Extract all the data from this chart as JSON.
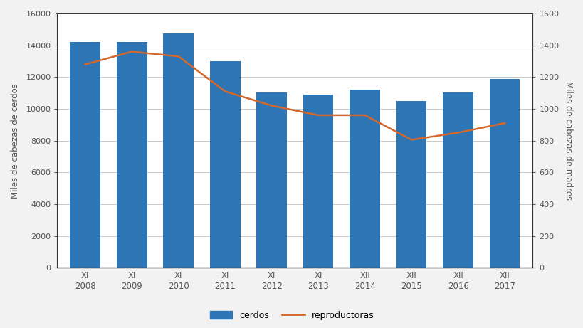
{
  "years": [
    "2008",
    "2009",
    "2010",
    "2011",
    "2012",
    "2013",
    "2014",
    "2015",
    "2016",
    "2017"
  ],
  "months": [
    "XI",
    "XI",
    "XI",
    "XI",
    "XI",
    "XI",
    "XII",
    "XII",
    "XII",
    "XII"
  ],
  "cerdos": [
    14200,
    14200,
    14750,
    13000,
    11050,
    10900,
    11200,
    10500,
    11050,
    11900
  ],
  "reproductoras": [
    1280,
    1360,
    1330,
    1110,
    1020,
    960,
    960,
    805,
    850,
    910
  ],
  "bar_color": "#2e75b6",
  "line_color": "#d4682a",
  "left_ylim": [
    0,
    16000
  ],
  "right_ylim": [
    0,
    1600
  ],
  "left_yticks": [
    0,
    2000,
    4000,
    6000,
    8000,
    10000,
    12000,
    14000,
    16000
  ],
  "right_yticks": [
    0,
    200,
    400,
    600,
    800,
    1000,
    1200,
    1400,
    1600
  ],
  "left_ylabel": "Miles de cabezas de cerdos",
  "right_ylabel": "Miles de cabezas de madres",
  "legend_cerdos": "cerdos",
  "legend_reproductoras": "reproductoras",
  "bg_color": "#ffffff",
  "outer_bg": "#f2f2f2",
  "grid_color": "#c8c8c8",
  "spine_color": "#333333",
  "tick_color": "#555555"
}
